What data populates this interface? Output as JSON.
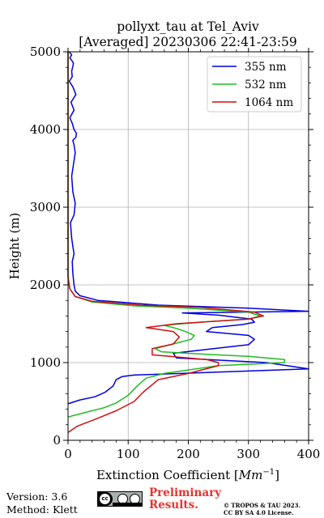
{
  "chart_data": {
    "type": "line",
    "title": "pollyxt_tau at Tel_Aviv",
    "subtitle": "[Averaged] 20230306 22:41-23:59",
    "xlabel_text": "Extinction Coefficient [",
    "xlabel_unit": "Mm",
    "xlabel_exp": "−1",
    "xlabel_end": "]",
    "ylabel": "Height (m)",
    "xlim": [
      0,
      400
    ],
    "ylim": [
      0,
      5000
    ],
    "x_ticks": [
      0,
      100,
      200,
      300,
      400
    ],
    "y_ticks": [
      0,
      1000,
      2000,
      3000,
      4000,
      5000
    ],
    "grid": true,
    "legend_position": "top-right",
    "series": [
      {
        "name": "355 nm",
        "color": "#0000dd",
        "x": [
          0,
          20,
          45,
          62,
          75,
          80,
          90,
          110,
          400,
          330,
          180,
          175,
          230,
          300,
          310,
          300,
          230,
          240,
          290,
          310,
          305,
          250,
          190,
          400,
          300,
          150,
          50,
          20,
          12,
          10,
          8,
          7,
          10,
          8,
          6,
          4,
          10,
          12,
          8,
          6,
          9,
          12,
          10,
          8,
          13,
          14,
          10,
          7,
          3,
          10,
          5,
          13,
          8,
          2,
          7,
          6,
          9,
          7,
          3,
          6,
          2
        ],
        "y": [
          470,
          520,
          560,
          620,
          700,
          780,
          820,
          840,
          920,
          1000,
          1060,
          1120,
          1170,
          1230,
          1300,
          1350,
          1400,
          1450,
          1490,
          1520,
          1560,
          1610,
          1640,
          1660,
          1700,
          1740,
          1800,
          1860,
          1920,
          2000,
          2150,
          2300,
          2400,
          2500,
          2600,
          2800,
          2900,
          3050,
          3200,
          3400,
          3550,
          3700,
          3800,
          3860,
          3900,
          3950,
          4000,
          4080,
          4150,
          4250,
          4350,
          4450,
          4550,
          4620,
          4680,
          4750,
          4850,
          4880,
          4920,
          4960,
          5000
        ]
      },
      {
        "name": "532 nm",
        "color": "#22bb22",
        "x": [
          0,
          30,
          60,
          80,
          100,
          115,
          130,
          160,
          250,
          360,
          360,
          300,
          220,
          155,
          145,
          170,
          205,
          210,
          195,
          180,
          160,
          220,
          300,
          320,
          300,
          200,
          110,
          40,
          12,
          3,
          0,
          0,
          0
        ],
        "y": [
          300,
          360,
          420,
          480,
          580,
          700,
          800,
          860,
          960,
          1000,
          1040,
          1080,
          1110,
          1140,
          1180,
          1230,
          1300,
          1350,
          1400,
          1440,
          1480,
          1520,
          1560,
          1600,
          1650,
          1700,
          1730,
          1780,
          1850,
          1950,
          2100,
          3000,
          5000
        ]
      },
      {
        "name": "1064 nm",
        "color": "#cc1111",
        "x": [
          0,
          15,
          45,
          80,
          110,
          125,
          150,
          200,
          250,
          250,
          230,
          140,
          140,
          175,
          185,
          175,
          130,
          180,
          300,
          325,
          310,
          220,
          120,
          40,
          12,
          3,
          0,
          0,
          0
        ],
        "y": [
          100,
          180,
          270,
          380,
          500,
          620,
          780,
          860,
          960,
          1000,
          1040,
          1100,
          1180,
          1240,
          1330,
          1400,
          1450,
          1500,
          1560,
          1600,
          1650,
          1710,
          1740,
          1790,
          1850,
          1950,
          2100,
          3000,
          5000
        ]
      }
    ]
  },
  "footer": {
    "version_label": "Version: 3.6",
    "method_label": "Method: Klett",
    "preliminary_line1": "Preliminary",
    "preliminary_line2": "Results.",
    "copyright_line1": "© TROPOS & TAU 2023.",
    "copyright_line2": "CC BY SA 4.0 License.",
    "badge_icon": "cc-by-sa-badge-icon"
  }
}
